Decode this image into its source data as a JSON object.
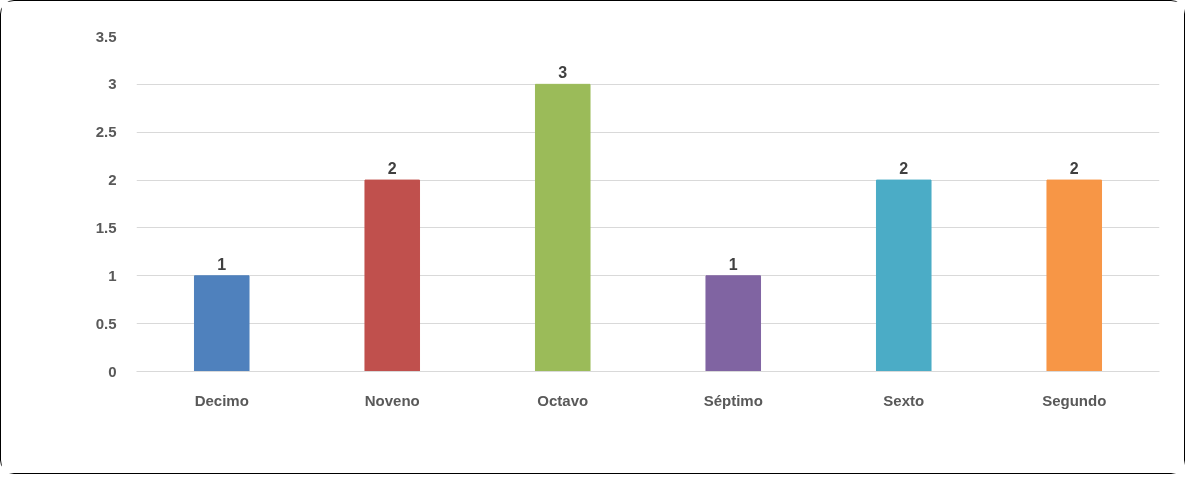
{
  "chart_data": {
    "type": "bar",
    "categories": [
      "Decimo",
      "Noveno",
      "Octavo",
      "Séptimo",
      "Sexto",
      "Segundo"
    ],
    "values": [
      1,
      2,
      3,
      1,
      2,
      2
    ],
    "colors": [
      "#4f81bd",
      "#c0504d",
      "#9bbb59",
      "#8064a2",
      "#4bacc6",
      "#f79646"
    ],
    "ylim": [
      0,
      3.5
    ],
    "yticks": [
      0,
      {
        "value": 0.5,
        "label": "0.5"
      },
      1,
      {
        "value": 1.5,
        "label": "1.5"
      },
      2,
      {
        "value": 2.5,
        "label": "2.5"
      },
      3,
      {
        "value": 3.5,
        "label": "3.5"
      }
    ],
    "grid": "y",
    "data_labels": true
  }
}
